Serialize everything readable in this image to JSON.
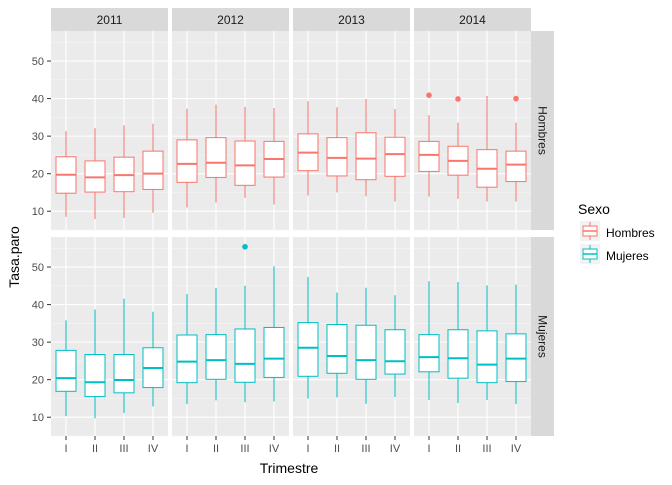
{
  "chart_data": {
    "type": "boxplot",
    "facets": {
      "columns": [
        "2011",
        "2012",
        "2013",
        "2014"
      ],
      "rows": [
        "Hombres",
        "Mujeres"
      ]
    },
    "categories": [
      "I",
      "II",
      "III",
      "IV"
    ],
    "xlabel": "Trimestre",
    "ylabel": "Tasa.paro",
    "ylim": [
      5,
      58
    ],
    "yticks": [
      10,
      20,
      30,
      40,
      50
    ],
    "grid": true,
    "legend": {
      "title": "Sexo",
      "position": "right",
      "entries": [
        {
          "name": "Hombres",
          "color": "#F8766D"
        },
        {
          "name": "Mujeres",
          "color": "#00BFC4"
        }
      ]
    },
    "series": [
      {
        "name": "Hombres",
        "color": "#F8766D",
        "years": {
          "2011": [
            {
              "q": "I",
              "min": 8.5,
              "q1": 14.8,
              "median": 19.7,
              "q3": 24.5,
              "max": 31.3,
              "outliers": []
            },
            {
              "q": "II",
              "min": 7.9,
              "q1": 15.1,
              "median": 19.0,
              "q3": 23.4,
              "max": 32.1,
              "outliers": []
            },
            {
              "q": "III",
              "min": 8.2,
              "q1": 15.2,
              "median": 19.6,
              "q3": 24.4,
              "max": 32.9,
              "outliers": []
            },
            {
              "q": "IV",
              "min": 9.6,
              "q1": 15.8,
              "median": 20.0,
              "q3": 26.0,
              "max": 33.3,
              "outliers": []
            }
          ],
          "2012": [
            {
              "q": "I",
              "min": 11.0,
              "q1": 17.7,
              "median": 22.6,
              "q3": 29.0,
              "max": 37.3,
              "outliers": []
            },
            {
              "q": "II",
              "min": 12.3,
              "q1": 19.0,
              "median": 22.9,
              "q3": 29.6,
              "max": 38.4,
              "outliers": []
            },
            {
              "q": "III",
              "min": 13.6,
              "q1": 16.9,
              "median": 22.2,
              "q3": 28.7,
              "max": 37.8,
              "outliers": []
            },
            {
              "q": "IV",
              "min": 11.8,
              "q1": 19.1,
              "median": 23.9,
              "q3": 28.6,
              "max": 37.5,
              "outliers": []
            }
          ],
          "2013": [
            {
              "q": "I",
              "min": 14.2,
              "q1": 20.8,
              "median": 25.6,
              "q3": 30.6,
              "max": 39.3,
              "outliers": []
            },
            {
              "q": "II",
              "min": 15.0,
              "q1": 19.4,
              "median": 24.2,
              "q3": 29.6,
              "max": 37.7,
              "outliers": []
            },
            {
              "q": "III",
              "min": 14.0,
              "q1": 18.4,
              "median": 24.0,
              "q3": 30.9,
              "max": 39.9,
              "outliers": []
            },
            {
              "q": "IV",
              "min": 12.6,
              "q1": 19.3,
              "median": 25.2,
              "q3": 29.7,
              "max": 37.2,
              "outliers": []
            }
          ],
          "2014": [
            {
              "q": "I",
              "min": 13.9,
              "q1": 20.6,
              "median": 25.0,
              "q3": 28.6,
              "max": 35.6,
              "outliers": [
                40.9
              ]
            },
            {
              "q": "II",
              "min": 13.3,
              "q1": 19.6,
              "median": 23.4,
              "q3": 27.3,
              "max": 33.6,
              "outliers": [
                39.9
              ]
            },
            {
              "q": "III",
              "min": 12.6,
              "q1": 16.4,
              "median": 21.3,
              "q3": 26.4,
              "max": 40.7,
              "outliers": []
            },
            {
              "q": "IV",
              "min": 12.6,
              "q1": 17.9,
              "median": 22.4,
              "q3": 26.0,
              "max": 33.6,
              "outliers": [
                40.0
              ]
            }
          ]
        }
      },
      {
        "name": "Mujeres",
        "color": "#00BFC4",
        "years": {
          "2011": [
            {
              "q": "I",
              "min": 10.3,
              "q1": 16.9,
              "median": 20.4,
              "q3": 27.8,
              "max": 35.8,
              "outliers": []
            },
            {
              "q": "II",
              "min": 9.7,
              "q1": 15.5,
              "median": 19.3,
              "q3": 26.7,
              "max": 38.7,
              "outliers": []
            },
            {
              "q": "III",
              "min": 11.1,
              "q1": 16.5,
              "median": 19.9,
              "q3": 26.7,
              "max": 41.6,
              "outliers": []
            },
            {
              "q": "IV",
              "min": 12.9,
              "q1": 17.9,
              "median": 23.1,
              "q3": 28.5,
              "max": 38.1,
              "outliers": []
            }
          ],
          "2012": [
            {
              "q": "I",
              "min": 13.5,
              "q1": 19.2,
              "median": 24.8,
              "q3": 31.9,
              "max": 42.8,
              "outliers": []
            },
            {
              "q": "II",
              "min": 14.5,
              "q1": 20.1,
              "median": 25.2,
              "q3": 32.0,
              "max": 44.4,
              "outliers": []
            },
            {
              "q": "III",
              "min": 14.0,
              "q1": 19.3,
              "median": 24.2,
              "q3": 33.5,
              "max": 45.0,
              "outliers": [
                55.4
              ]
            },
            {
              "q": "IV",
              "min": 14.2,
              "q1": 20.6,
              "median": 25.6,
              "q3": 33.9,
              "max": 50.2,
              "outliers": []
            }
          ],
          "2013": [
            {
              "q": "I",
              "min": 15.0,
              "q1": 20.9,
              "median": 28.5,
              "q3": 35.2,
              "max": 47.3,
              "outliers": []
            },
            {
              "q": "II",
              "min": 15.3,
              "q1": 21.7,
              "median": 26.3,
              "q3": 34.7,
              "max": 43.2,
              "outliers": []
            },
            {
              "q": "III",
              "min": 13.6,
              "q1": 20.1,
              "median": 25.2,
              "q3": 34.5,
              "max": 44.5,
              "outliers": []
            },
            {
              "q": "IV",
              "min": 15.4,
              "q1": 21.5,
              "median": 24.9,
              "q3": 33.3,
              "max": 42.5,
              "outliers": []
            }
          ],
          "2014": [
            {
              "q": "I",
              "min": 14.6,
              "q1": 22.1,
              "median": 26.0,
              "q3": 32.0,
              "max": 46.2,
              "outliers": []
            },
            {
              "q": "II",
              "min": 13.8,
              "q1": 20.4,
              "median": 25.7,
              "q3": 33.3,
              "max": 46.0,
              "outliers": []
            },
            {
              "q": "III",
              "min": 14.6,
              "q1": 19.2,
              "median": 24.0,
              "q3": 33.0,
              "max": 45.1,
              "outliers": []
            },
            {
              "q": "IV",
              "min": 13.5,
              "q1": 19.5,
              "median": 25.6,
              "q3": 32.2,
              "max": 45.3,
              "outliers": []
            }
          ]
        }
      }
    ]
  }
}
